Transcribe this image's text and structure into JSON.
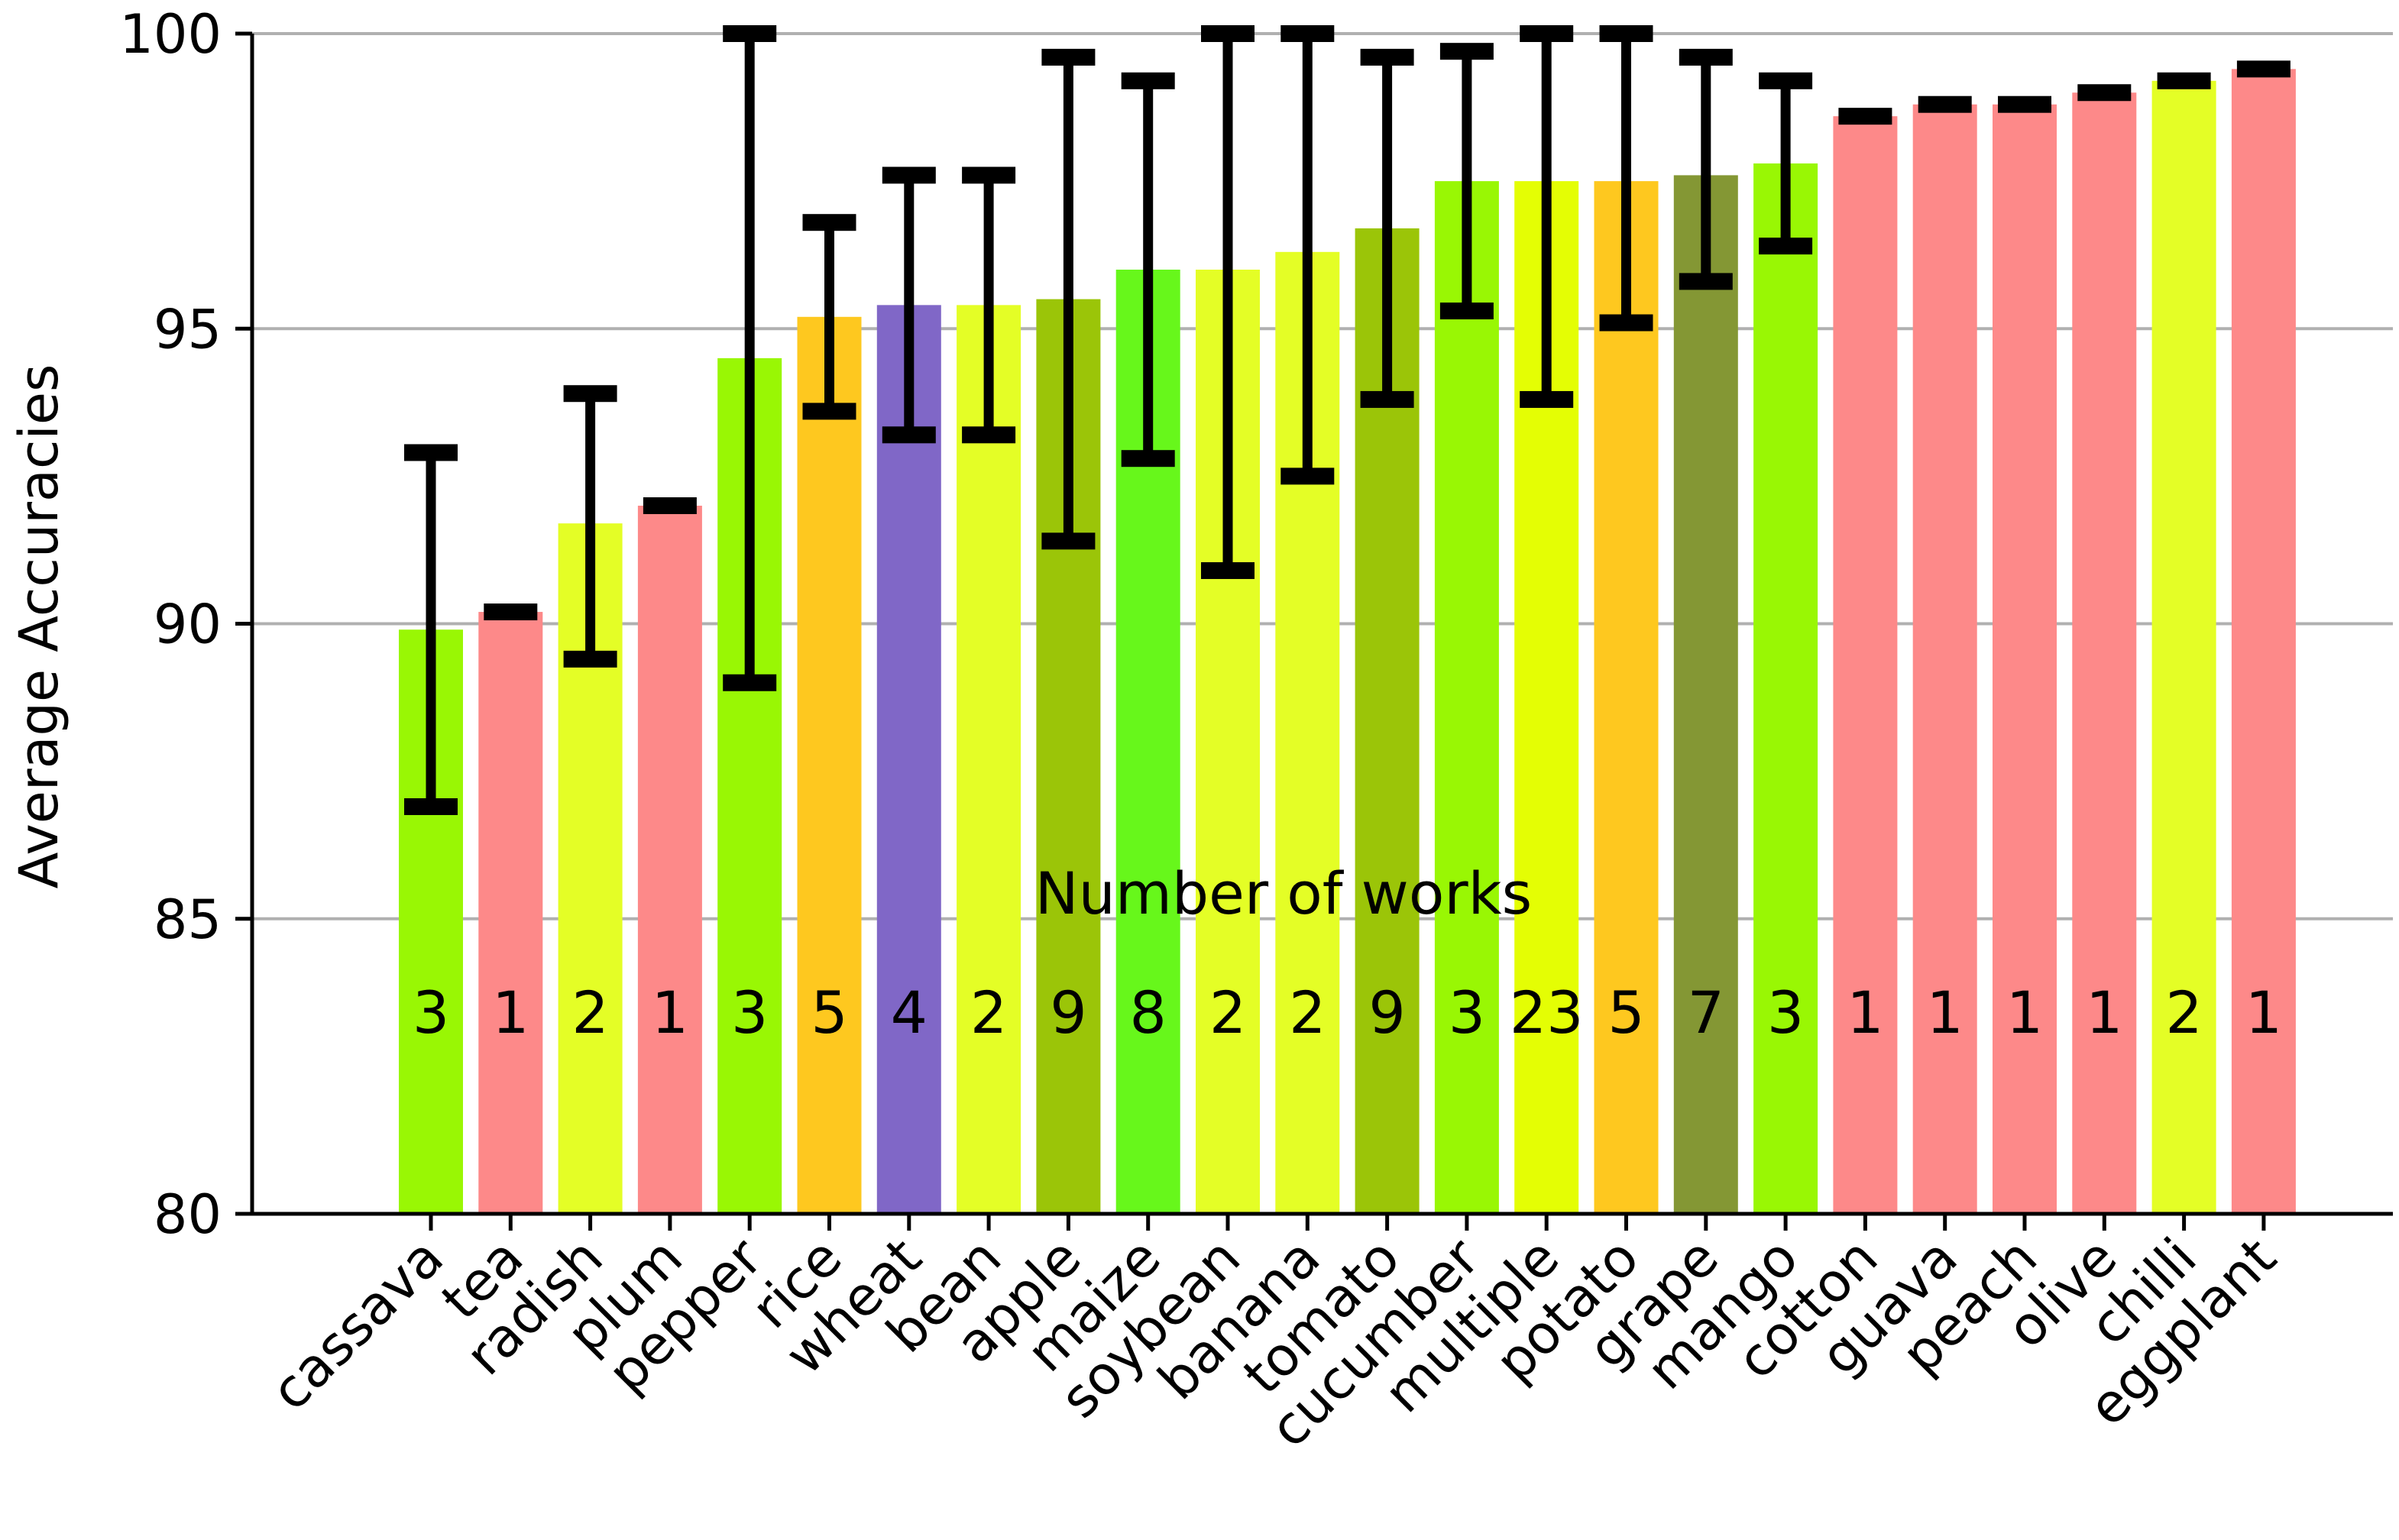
{
  "chart_data": {
    "type": "bar",
    "ylabel": "Average Accuracies",
    "xlabel": "",
    "ylim": [
      80,
      100
    ],
    "yticks": [
      "80",
      "85",
      "90",
      "95",
      "100"
    ],
    "grid": true,
    "annotation": "Number of works",
    "categories": [
      "cassava",
      "tea",
      "radish",
      "plum",
      "pepper",
      "rice",
      "wheat",
      "bean",
      "apple",
      "maize",
      "soybean",
      "banana",
      "tomato",
      "cucumber",
      "multiple",
      "potato",
      "grape",
      "mango",
      "cotton",
      "guava",
      "peach",
      "olive",
      "chilli",
      "eggplant"
    ],
    "values": [
      89.9,
      90.2,
      91.7,
      92.0,
      94.5,
      95.2,
      95.4,
      95.4,
      95.5,
      96.0,
      96.0,
      96.3,
      96.7,
      97.5,
      97.5,
      97.5,
      97.6,
      97.8,
      98.6,
      98.8,
      98.8,
      99.0,
      99.2,
      99.4
    ],
    "error_low": [
      86.9,
      90.2,
      89.4,
      92.0,
      89.0,
      93.6,
      93.2,
      93.2,
      91.4,
      92.8,
      90.9,
      92.5,
      93.8,
      95.3,
      93.8,
      95.1,
      95.8,
      96.4,
      98.6,
      98.8,
      98.8,
      99.0,
      99.2,
      99.4
    ],
    "error_high": [
      92.9,
      90.2,
      93.9,
      92.0,
      100.0,
      96.8,
      97.6,
      97.6,
      99.6,
      99.2,
      100.0,
      100.0,
      99.6,
      99.7,
      100.0,
      100.0,
      99.6,
      99.2,
      98.6,
      98.8,
      98.8,
      99.0,
      99.2,
      99.4
    ],
    "counts": [
      "3",
      "1",
      "2",
      "1",
      "3",
      "5",
      "4",
      "2",
      "9",
      "8",
      "2",
      "2",
      "9",
      "3",
      "23",
      "5",
      "7",
      "3",
      "1",
      "1",
      "1",
      "1",
      "2",
      "1"
    ],
    "colors": [
      "#99f704",
      "#fd8989",
      "#e4fe26",
      "#fd8989",
      "#99f704",
      "#fec81f",
      "#8067c7",
      "#e4fe26",
      "#9bc508",
      "#67f71b",
      "#e4fe26",
      "#e4fe26",
      "#9bc508",
      "#99f704",
      "#e4fe04",
      "#fec81f",
      "#849734",
      "#99f704",
      "#fd8989",
      "#fd8989",
      "#fd8989",
      "#fd8989",
      "#e4fe26",
      "#fd8989"
    ]
  }
}
